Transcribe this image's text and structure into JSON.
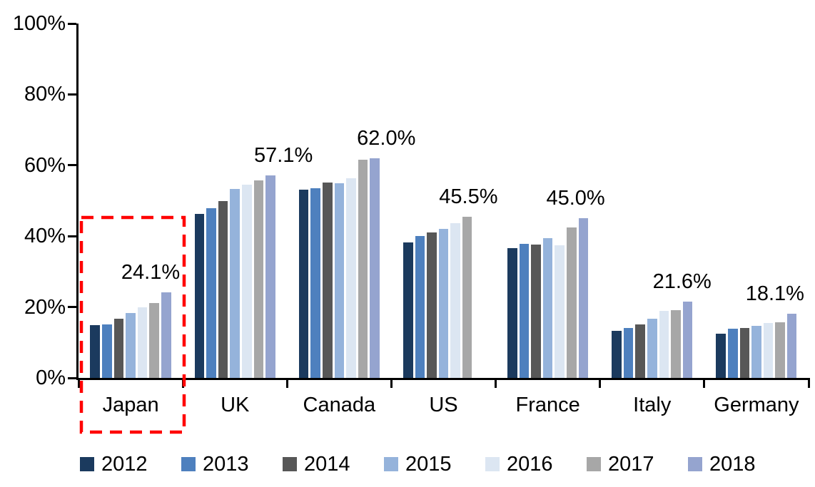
{
  "chart_data": {
    "type": "bar",
    "title": "",
    "xlabel": "",
    "ylabel": "",
    "ylim": [
      0,
      100
    ],
    "grid": false,
    "legend_position": "bottom",
    "categories": [
      "Japan",
      "UK",
      "Canada",
      "US",
      "France",
      "Italy",
      "Germany"
    ],
    "series": [
      {
        "name": "2012",
        "color": "#1B3A5E",
        "values": [
          14.8,
          46.2,
          53.1,
          38.3,
          36.6,
          13.3,
          12.5
        ]
      },
      {
        "name": "2013",
        "color": "#4E80BE",
        "values": [
          15.0,
          47.9,
          53.6,
          40.1,
          37.8,
          14.1,
          13.8
        ]
      },
      {
        "name": "2014",
        "color": "#575757",
        "values": [
          16.8,
          50.0,
          55.1,
          41.0,
          37.7,
          15.1,
          14.1
        ]
      },
      {
        "name": "2015",
        "color": "#95B3DB",
        "values": [
          18.3,
          53.3,
          55.0,
          42.1,
          39.4,
          16.7,
          14.7
        ]
      },
      {
        "name": "2016",
        "color": "#DCE6F2",
        "values": [
          20.0,
          54.6,
          56.4,
          43.6,
          37.4,
          19.0,
          15.4
        ]
      },
      {
        "name": "2017",
        "color": "#A7A7A7",
        "values": [
          21.2,
          55.7,
          61.5,
          45.5,
          42.4,
          19.2,
          15.7
        ]
      },
      {
        "name": "2018",
        "color": "#95A4CF",
        "values": [
          24.1,
          57.1,
          62.0,
          null,
          45.0,
          21.6,
          18.1
        ]
      }
    ],
    "group_max_labels": [
      "24.1%",
      "57.1%",
      "62.0%",
      "45.5%",
      "45.0%",
      "21.6%",
      "18.1%"
    ],
    "yticks": [
      {
        "label": "100%",
        "value": 100
      },
      {
        "label": "80%",
        "value": 80
      },
      {
        "label": "60%",
        "value": 60
      },
      {
        "label": "40%",
        "value": 40
      },
      {
        "label": "20%",
        "value": 20
      },
      {
        "label": "0%",
        "value": 0
      }
    ],
    "annotation": {
      "highlighted_category": "Japan",
      "highlight_color": "#FF0000"
    }
  }
}
